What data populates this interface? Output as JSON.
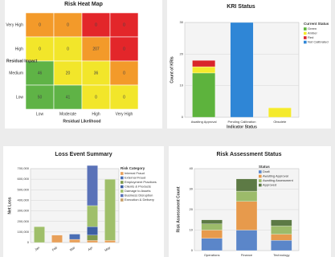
{
  "chart_data": [
    {
      "type": "heatmap",
      "title": "Risk Heat Map",
      "x_label": "Residual Likelihood",
      "y_label": "Residual Impact",
      "x_categories": [
        "Low",
        "Moderate",
        "High",
        "Very High"
      ],
      "y_categories": [
        "Very High",
        "High",
        "Medium",
        "Low"
      ],
      "values": [
        [
          0,
          0,
          0,
          0
        ],
        [
          0,
          0,
          207,
          0
        ],
        [
          46,
          20,
          36,
          0
        ],
        [
          50,
          41,
          0,
          0
        ]
      ],
      "colors": [
        [
          "#f39a2a",
          "#f39a2a",
          "#e3262a",
          "#e3262a"
        ],
        [
          "#f2e62a",
          "#f2e62a",
          "#f39a2a",
          "#e3262a"
        ],
        [
          "#5fb346",
          "#f2e62a",
          "#f2e62a",
          "#f39a2a"
        ],
        [
          "#5fb346",
          "#5fb346",
          "#f2e62a",
          "#f2e62a"
        ]
      ]
    },
    {
      "type": "bar",
      "title": "KRI Status",
      "x_label": "Indicator Status",
      "y_label": "Count of KRIs",
      "legend_title": "Current Status",
      "categories": [
        "Awaiting Approval",
        "Pending Calibration",
        "Obsolete"
      ],
      "series": [
        {
          "name": "Green",
          "color": "#5db33d",
          "values": [
            14,
            0,
            0
          ]
        },
        {
          "name": "Amber",
          "color": "#f4ea2c",
          "values": [
            2,
            0,
            3
          ]
        },
        {
          "name": "Red",
          "color": "#d9262b",
          "values": [
            2,
            0,
            0
          ]
        },
        {
          "name": "Not Calibrated",
          "color": "#2f86d6",
          "values": [
            0,
            30,
            0
          ]
        }
      ],
      "ylim": [
        0,
        30
      ],
      "yticks": [
        0,
        10,
        20,
        30
      ],
      "grid": true
    },
    {
      "type": "bar",
      "title": "Loss Event Summary",
      "y_label": "Net Loss",
      "legend_title": "Risk Category",
      "categories": [
        "Jan",
        "Feb",
        "Mar",
        "Apr",
        "May"
      ],
      "series": [
        {
          "name": "Internal Fraud",
          "color": "#e8a05a",
          "values": [
            0,
            70000,
            30000,
            20000,
            20000
          ]
        },
        {
          "name": "External Fraud",
          "color": "#4b6fb5",
          "values": [
            0,
            0,
            50000,
            0,
            0
          ]
        },
        {
          "name": "Employment Practices",
          "color": "#7f9a4c",
          "values": [
            0,
            0,
            0,
            50000,
            0
          ]
        },
        {
          "name": "Clients & Products",
          "color": "#3d5fa3",
          "values": [
            0,
            0,
            0,
            80000,
            0
          ]
        },
        {
          "name": "Damage to Assets",
          "color": "#9fbf6a",
          "values": [
            150000,
            0,
            0,
            200000,
            580000
          ]
        },
        {
          "name": "Business Disruption",
          "color": "#5a72b8",
          "values": [
            0,
            0,
            0,
            380000,
            0
          ]
        },
        {
          "name": "Execution & Delivery",
          "color": "#c7a06a",
          "values": [
            0,
            0,
            0,
            0,
            0
          ]
        }
      ],
      "ylim": [
        0,
        700000
      ],
      "yticks": [
        {
          "value": 0,
          "label": "0"
        },
        {
          "value": 100000,
          "label": "100,000"
        },
        {
          "value": 200000,
          "label": "200,000"
        },
        {
          "value": 300000,
          "label": "300,000"
        },
        {
          "value": 400000,
          "label": "400,000"
        },
        {
          "value": 500000,
          "label": "500,000"
        },
        {
          "value": 600000,
          "label": "600,000"
        },
        {
          "value": 700000,
          "label": "700,000"
        }
      ],
      "grid": true
    },
    {
      "type": "bar",
      "title": "Risk Assessment Status",
      "y_label": "Risk Assessment Count",
      "legend_title": "Status",
      "categories": [
        "Operations",
        "Finance",
        "Technology"
      ],
      "series": [
        {
          "name": "Draft",
          "color": "#5b86c9",
          "values": [
            6,
            10,
            5
          ]
        },
        {
          "name": "Awaiting Approval",
          "color": "#e79a4c",
          "values": [
            4,
            14,
            3
          ]
        },
        {
          "name": "Awaiting Assessment",
          "color": "#9cbb6a",
          "values": [
            3,
            5,
            4
          ]
        },
        {
          "name": "Approved",
          "color": "#5d7a45",
          "values": [
            2,
            6,
            3
          ]
        }
      ],
      "ylim": [
        0,
        40
      ],
      "yticks": [
        0,
        10,
        20,
        30,
        40
      ],
      "grid": true
    }
  ]
}
